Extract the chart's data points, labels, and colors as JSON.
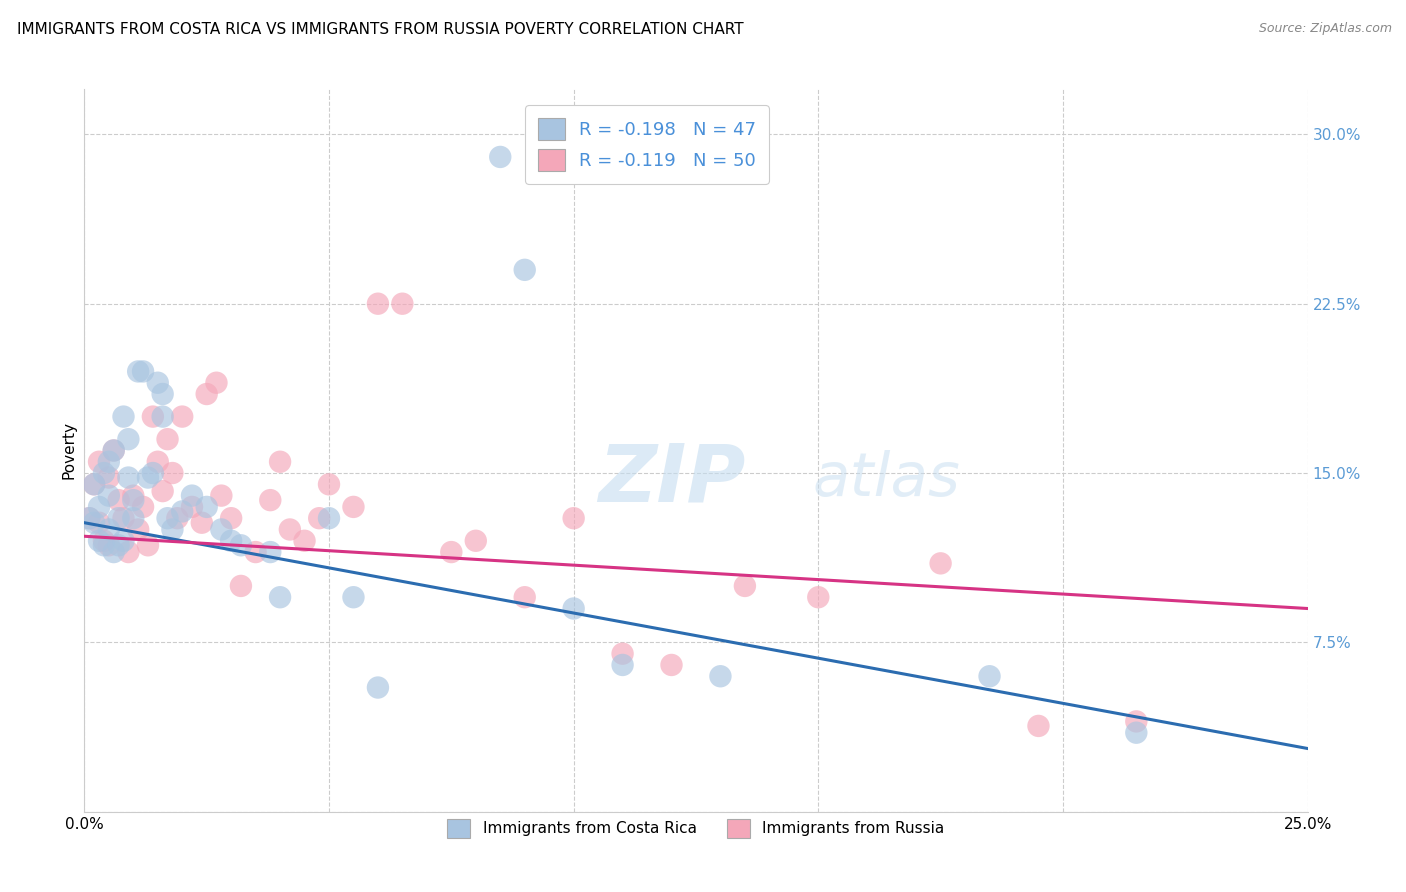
{
  "title": "IMMIGRANTS FROM COSTA RICA VS IMMIGRANTS FROM RUSSIA POVERTY CORRELATION CHART",
  "source": "Source: ZipAtlas.com",
  "ylabel": "Poverty",
  "xlim": [
    0.0,
    0.25
  ],
  "ylim": [
    0.0,
    0.32
  ],
  "xticks": [
    0.0,
    0.05,
    0.1,
    0.15,
    0.2,
    0.25
  ],
  "xtick_labels": [
    "0.0%",
    "",
    "",
    "",
    "",
    "25.0%"
  ],
  "yticks_right": [
    0.0,
    0.075,
    0.15,
    0.225,
    0.3
  ],
  "ytick_labels_right": [
    "",
    "7.5%",
    "15.0%",
    "22.5%",
    "30.0%"
  ],
  "blue_color": "#a8c4e0",
  "pink_color": "#f4a7b9",
  "blue_line_color": "#2b6cb0",
  "pink_line_color": "#d63384",
  "blue_label": "Immigrants from Costa Rica",
  "pink_label": "Immigrants from Russia",
  "R_blue": -0.198,
  "N_blue": 47,
  "R_pink": -0.119,
  "N_pink": 50,
  "watermark": "ZIPatlas",
  "title_fontsize": 11,
  "grid_color": "#cccccc",
  "background_color": "#ffffff",
  "legend_text_color": "#4a90d9",
  "right_axis_color": "#5b9bd5",
  "blue_line_y0": 0.128,
  "blue_line_y1": 0.028,
  "pink_line_y0": 0.122,
  "pink_line_y1": 0.09,
  "blue_scatter_x": [
    0.001,
    0.002,
    0.002,
    0.003,
    0.003,
    0.004,
    0.004,
    0.005,
    0.005,
    0.005,
    0.006,
    0.006,
    0.007,
    0.007,
    0.008,
    0.008,
    0.009,
    0.009,
    0.01,
    0.01,
    0.011,
    0.012,
    0.013,
    0.014,
    0.015,
    0.016,
    0.016,
    0.017,
    0.018,
    0.02,
    0.022,
    0.025,
    0.028,
    0.03,
    0.032,
    0.038,
    0.04,
    0.05,
    0.055,
    0.06,
    0.085,
    0.09,
    0.1,
    0.11,
    0.13,
    0.185,
    0.215
  ],
  "blue_scatter_y": [
    0.13,
    0.128,
    0.145,
    0.135,
    0.12,
    0.15,
    0.118,
    0.155,
    0.14,
    0.125,
    0.16,
    0.115,
    0.13,
    0.118,
    0.175,
    0.12,
    0.165,
    0.148,
    0.13,
    0.138,
    0.195,
    0.195,
    0.148,
    0.15,
    0.19,
    0.185,
    0.175,
    0.13,
    0.125,
    0.133,
    0.14,
    0.135,
    0.125,
    0.12,
    0.118,
    0.115,
    0.095,
    0.13,
    0.095,
    0.055,
    0.29,
    0.24,
    0.09,
    0.065,
    0.06,
    0.06,
    0.035
  ],
  "pink_scatter_x": [
    0.001,
    0.002,
    0.003,
    0.003,
    0.004,
    0.005,
    0.005,
    0.006,
    0.007,
    0.008,
    0.009,
    0.01,
    0.011,
    0.012,
    0.013,
    0.014,
    0.015,
    0.016,
    0.017,
    0.018,
    0.019,
    0.02,
    0.022,
    0.024,
    0.025,
    0.027,
    0.028,
    0.03,
    0.032,
    0.035,
    0.038,
    0.04,
    0.042,
    0.045,
    0.048,
    0.05,
    0.055,
    0.06,
    0.065,
    0.075,
    0.08,
    0.09,
    0.1,
    0.11,
    0.12,
    0.135,
    0.15,
    0.175,
    0.195,
    0.215
  ],
  "pink_scatter_y": [
    0.13,
    0.145,
    0.128,
    0.155,
    0.12,
    0.118,
    0.148,
    0.16,
    0.138,
    0.13,
    0.115,
    0.14,
    0.125,
    0.135,
    0.118,
    0.175,
    0.155,
    0.142,
    0.165,
    0.15,
    0.13,
    0.175,
    0.135,
    0.128,
    0.185,
    0.19,
    0.14,
    0.13,
    0.1,
    0.115,
    0.138,
    0.155,
    0.125,
    0.12,
    0.13,
    0.145,
    0.135,
    0.225,
    0.225,
    0.115,
    0.12,
    0.095,
    0.13,
    0.07,
    0.065,
    0.1,
    0.095,
    0.11,
    0.038,
    0.04
  ]
}
